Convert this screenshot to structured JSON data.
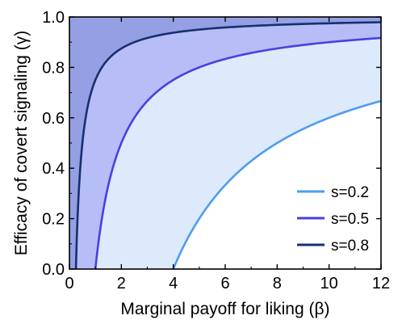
{
  "chart_data": {
    "type": "area",
    "xlabel": "Marginal payoff for liking (β)",
    "ylabel": "Efficacy of covert signaling (γ)",
    "xlim": [
      0,
      12
    ],
    "ylim": [
      0,
      1
    ],
    "xticks": [
      "0",
      "2",
      "4",
      "6",
      "8",
      "10",
      "12"
    ],
    "yticks": [
      "0.0",
      "0.2",
      "0.4",
      "0.6",
      "0.8",
      "1.0"
    ],
    "grid": false,
    "legend_position": "bottom-right",
    "series": [
      {
        "name": "s=0.2",
        "color": "#4f9cf0",
        "fill": "#dceafb",
        "x": [
          4,
          4.5,
          5,
          6,
          7,
          8,
          9,
          10,
          11,
          12
        ],
        "y": [
          0.0,
          0.11,
          0.2,
          0.333,
          0.429,
          0.5,
          0.556,
          0.6,
          0.636,
          0.667
        ]
      },
      {
        "name": "s=0.5",
        "color": "#4b3fe0",
        "fill": "#b7bdf7",
        "x": [
          1,
          1.25,
          1.5,
          2,
          3,
          4,
          5,
          6,
          8,
          10,
          12
        ],
        "y": [
          0.0,
          0.2,
          0.333,
          0.5,
          0.667,
          0.75,
          0.8,
          0.833,
          0.875,
          0.9,
          0.917
        ]
      },
      {
        "name": "s=0.8",
        "color": "#17306e",
        "fill": "#949fe4",
        "x": [
          0.25,
          0.3,
          0.35,
          0.4,
          0.5,
          0.75,
          1,
          1.5,
          2,
          3,
          4,
          6,
          8,
          10,
          12
        ],
        "y": [
          0.0,
          0.167,
          0.286,
          0.375,
          0.5,
          0.667,
          0.75,
          0.833,
          0.875,
          0.917,
          0.938,
          0.958,
          0.969,
          0.975,
          0.979
        ]
      }
    ]
  }
}
